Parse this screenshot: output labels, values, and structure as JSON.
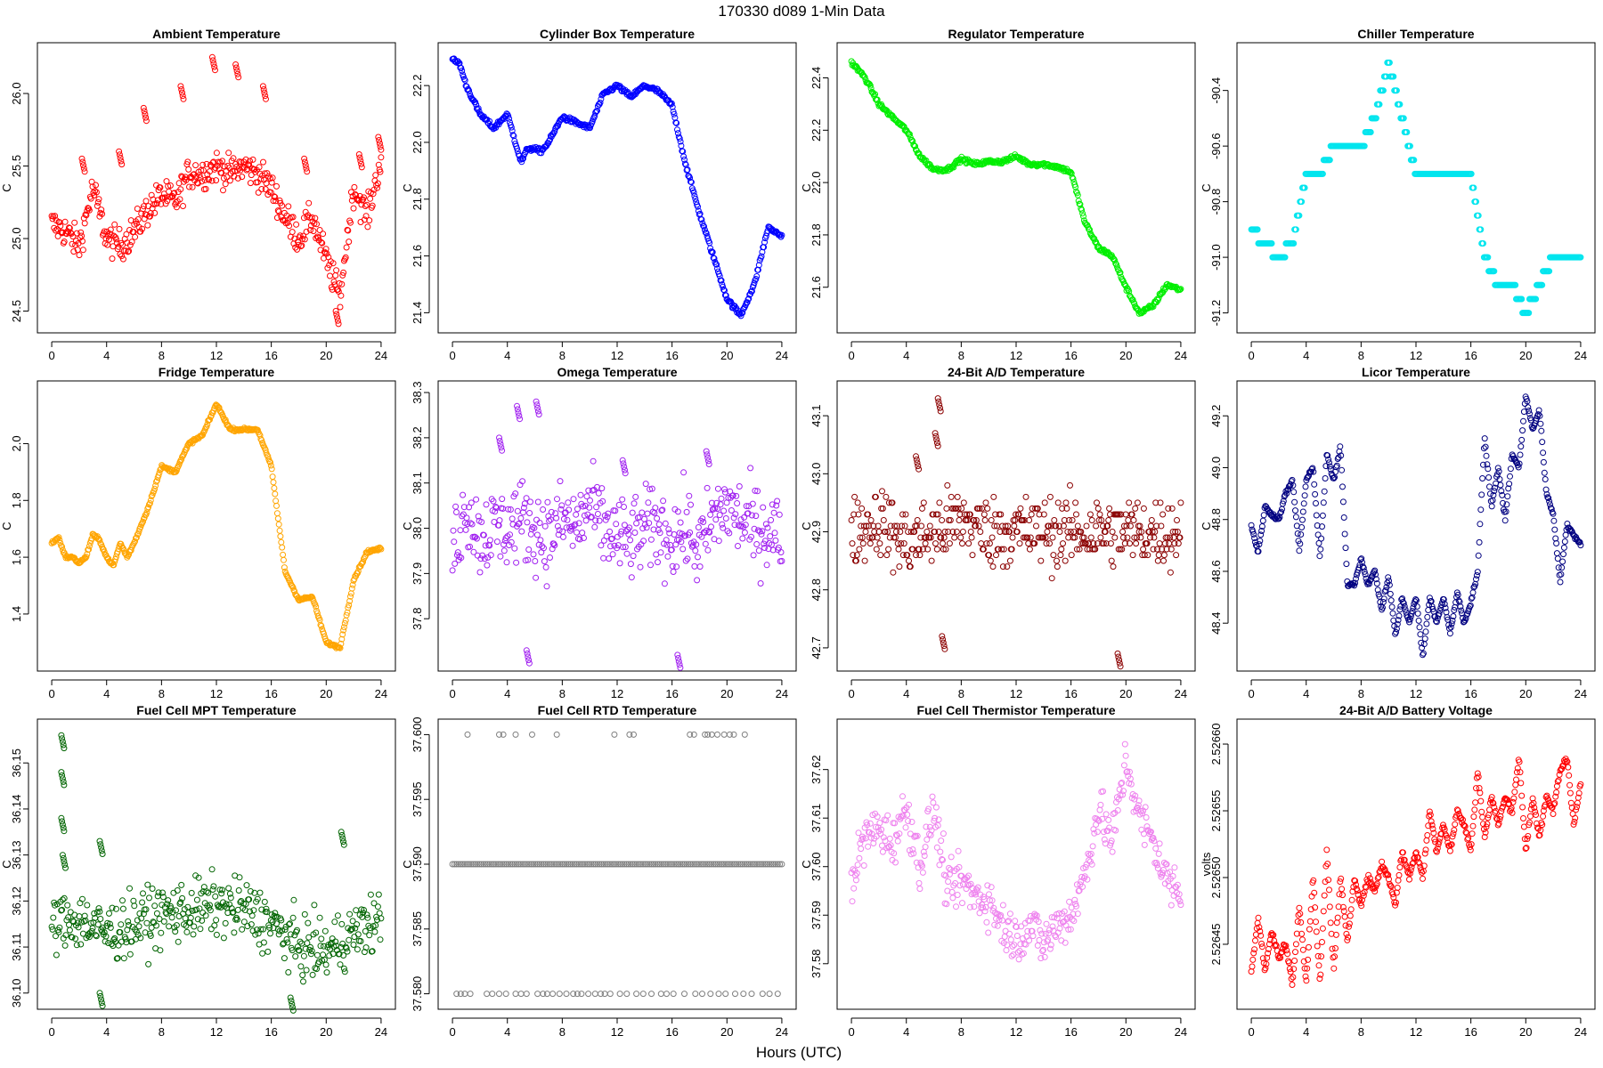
{
  "figure": {
    "title": "170330    d089    1-Min Data",
    "xlabel": "Hours (UTC)"
  },
  "chart_data": [
    {
      "type": "scatter",
      "title": "Ambient Temperature",
      "ylabel": "C",
      "color": "#ff0000",
      "xlim": [
        0,
        24
      ],
      "ylim": [
        24.43,
        26.27
      ],
      "xticks": [
        0,
        4,
        8,
        12,
        16,
        20,
        24
      ],
      "yticks": [
        "24.5",
        "25.0",
        "25.5",
        "26.0"
      ],
      "x": [
        0,
        1,
        2,
        3,
        4,
        5,
        6,
        7,
        8,
        9,
        10,
        11,
        12,
        13,
        14,
        15,
        16,
        17,
        18,
        19,
        20,
        21,
        22,
        23,
        24
      ],
      "y": [
        25.1,
        25.05,
        24.95,
        25.35,
        25.0,
        24.95,
        25.05,
        25.2,
        25.3,
        25.25,
        25.45,
        25.45,
        25.5,
        25.45,
        25.5,
        25.45,
        25.35,
        25.15,
        25.0,
        25.15,
        24.85,
        24.6,
        25.35,
        25.15,
        25.55
      ],
      "spread": 0.11,
      "spikes": [
        [
          2.3,
          25.55
        ],
        [
          5.0,
          25.6
        ],
        [
          6.8,
          25.9
        ],
        [
          9.5,
          26.05
        ],
        [
          11.8,
          26.25
        ],
        [
          13.5,
          26.2
        ],
        [
          15.5,
          26.05
        ],
        [
          18.5,
          25.55
        ],
        [
          20.8,
          24.5
        ],
        [
          22.5,
          25.58
        ],
        [
          23.9,
          25.7
        ]
      ]
    },
    {
      "type": "scatter",
      "title": "Cylinder Box Temperature",
      "ylabel": "C",
      "color": "#0000ff",
      "xlim": [
        0,
        24
      ],
      "ylim": [
        21.37,
        22.31
      ],
      "xticks": [
        0,
        4,
        8,
        12,
        16,
        20,
        24
      ],
      "yticks": [
        "21.4",
        "21.6",
        "21.8",
        "22.0",
        "22.2"
      ],
      "x": [
        0,
        0.5,
        1,
        2,
        3,
        4,
        5,
        5.5,
        6.5,
        7,
        8,
        9,
        10,
        11,
        12,
        13,
        14,
        15,
        16,
        17,
        18,
        19,
        20,
        21,
        22,
        23,
        24
      ],
      "y": [
        22.29,
        22.28,
        22.2,
        22.1,
        22.05,
        22.1,
        21.93,
        21.98,
        21.97,
        22.0,
        22.09,
        22.07,
        22.05,
        22.17,
        22.2,
        22.16,
        22.2,
        22.18,
        22.13,
        21.92,
        21.75,
        21.6,
        21.45,
        21.39,
        21.5,
        21.7,
        21.67
      ],
      "spread": 0.008
    },
    {
      "type": "scatter",
      "title": "Regulator Temperature",
      "ylabel": "C",
      "color": "#00ee00",
      "xlim": [
        0,
        24
      ],
      "ylim": [
        21.47,
        22.49
      ],
      "xticks": [
        0,
        4,
        8,
        12,
        16,
        20,
        24
      ],
      "yticks": [
        "21.6",
        "21.8",
        "22.0",
        "22.2",
        "22.4"
      ],
      "x": [
        0,
        1,
        2,
        3,
        4,
        5,
        6,
        7,
        8,
        9,
        10,
        11,
        12,
        13,
        14,
        15,
        16,
        17,
        18,
        19,
        20,
        21,
        22,
        23,
        24
      ],
      "y": [
        22.46,
        22.4,
        22.3,
        22.25,
        22.2,
        22.1,
        22.05,
        22.05,
        22.09,
        22.07,
        22.08,
        22.08,
        22.1,
        22.07,
        22.07,
        22.06,
        22.04,
        21.85,
        21.75,
        21.72,
        21.6,
        21.5,
        21.53,
        21.61,
        21.59
      ],
      "spread": 0.008
    },
    {
      "type": "scatter",
      "title": "Chiller Temperature",
      "ylabel": "C",
      "color": "#00e5ee",
      "xlim": [
        0,
        24
      ],
      "ylim": [
        -91.23,
        -90.27
      ],
      "xticks": [
        0,
        4,
        8,
        12,
        16,
        20,
        24
      ],
      "yticks": [
        "-91.2",
        "-91.0",
        "-90.8",
        "-90.6",
        "-90.4"
      ],
      "x": [
        0,
        1,
        2,
        3,
        4,
        5,
        6,
        7,
        8,
        9,
        10,
        11,
        12,
        13,
        14,
        15,
        16,
        17,
        18,
        19,
        20,
        21,
        22,
        23,
        24
      ],
      "y": [
        -90.9,
        -90.95,
        -91.0,
        -90.95,
        -90.7,
        -90.7,
        -90.6,
        -90.6,
        -90.6,
        -90.5,
        -90.3,
        -90.5,
        -90.7,
        -90.7,
        -90.7,
        -90.7,
        -90.7,
        -91.0,
        -91.1,
        -91.1,
        -91.2,
        -91.1,
        -91.0,
        -91.0,
        -91.0
      ],
      "spread": 0.0,
      "quantize": 0.05
    },
    {
      "type": "scatter",
      "title": "Fridge Temperature",
      "ylabel": "C",
      "color": "#ffa500",
      "xlim": [
        0,
        24
      ],
      "ylim": [
        1.24,
        2.18
      ],
      "xticks": [
        0,
        4,
        8,
        12,
        16,
        20,
        24
      ],
      "yticks": [
        "1.4",
        "1.6",
        "1.8",
        "2.0"
      ],
      "x": [
        0,
        0.5,
        1,
        1.5,
        2,
        2.5,
        3,
        3.5,
        4,
        4.5,
        5,
        5.5,
        6,
        7,
        8,
        9,
        10,
        11,
        12,
        13,
        14,
        15,
        16,
        17,
        18,
        19,
        20,
        21,
        22,
        23,
        24
      ],
      "y": [
        1.65,
        1.67,
        1.6,
        1.6,
        1.58,
        1.6,
        1.68,
        1.66,
        1.6,
        1.57,
        1.65,
        1.6,
        1.65,
        1.77,
        1.92,
        1.9,
        2.0,
        2.03,
        2.14,
        2.05,
        2.05,
        2.05,
        1.92,
        1.55,
        1.45,
        1.46,
        1.3,
        1.28,
        1.52,
        1.62,
        1.63
      ],
      "spread": 0.005
    },
    {
      "type": "scatter",
      "title": "Omega Temperature",
      "ylabel": "C",
      "color": "#a020f0",
      "xlim": [
        0,
        24
      ],
      "ylim": [
        37.71,
        38.3
      ],
      "xticks": [
        0,
        4,
        8,
        12,
        16,
        20,
        24
      ],
      "yticks": [
        "37.8",
        "37.9",
        "38.0",
        "38.1",
        "38.2",
        "38.3"
      ],
      "x": [
        0,
        1,
        2,
        3,
        4,
        5,
        6,
        7,
        8,
        9,
        10,
        11,
        12,
        13,
        14,
        15,
        16,
        17,
        18,
        19,
        20,
        21,
        22,
        23,
        24
      ],
      "y": [
        37.95,
        38.05,
        37.98,
        38.0,
        38.0,
        38.02,
        38.0,
        37.98,
        38.02,
        38.0,
        38.05,
        38.0,
        37.98,
        37.97,
        38.0,
        38.0,
        37.98,
        38.0,
        37.95,
        38.02,
        38.05,
        38.02,
        38.0,
        38.0,
        37.98
      ],
      "spread": 0.09,
      "spikes": [
        [
          3.5,
          38.2
        ],
        [
          4.8,
          38.27
        ],
        [
          6.2,
          38.28
        ],
        [
          5.5,
          37.73
        ],
        [
          16.5,
          37.72
        ],
        [
          12.5,
          38.15
        ],
        [
          18.6,
          38.17
        ]
      ]
    },
    {
      "type": "scatter",
      "title": "24-Bit A/D Temperature",
      "ylabel": "C",
      "color": "#8b0000",
      "xlim": [
        0,
        24
      ],
      "ylim": [
        42.68,
        43.14
      ],
      "xticks": [
        0,
        4,
        8,
        12,
        16,
        20,
        24
      ],
      "yticks": [
        "42.7",
        "42.8",
        "42.9",
        "43.0",
        "43.1"
      ],
      "x": [
        0,
        2,
        4,
        6,
        8,
        10,
        12,
        14,
        16,
        18,
        20,
        22,
        24
      ],
      "y": [
        42.9,
        42.92,
        42.88,
        42.9,
        42.92,
        42.9,
        42.9,
        42.9,
        42.9,
        42.9,
        42.9,
        42.9,
        42.9
      ],
      "spread": 0.06,
      "quantize": 0.01,
      "spikes": [
        [
          6.4,
          43.13
        ],
        [
          6.2,
          43.07
        ],
        [
          19.5,
          42.69
        ],
        [
          4.8,
          43.03
        ],
        [
          6.7,
          42.72
        ]
      ]
    },
    {
      "type": "scatter",
      "title": "Licor Temperature",
      "ylabel": "C",
      "color": "#000080",
      "xlim": [
        0,
        24
      ],
      "ylim": [
        48.26,
        49.29
      ],
      "xticks": [
        0,
        4,
        8,
        12,
        16,
        20,
        24
      ],
      "yticks": [
        "48.4",
        "48.6",
        "48.8",
        "49.0",
        "49.2"
      ],
      "x": [
        0,
        0.5,
        1,
        1.5,
        2,
        2.5,
        3,
        3.5,
        4,
        4.5,
        5,
        5.5,
        6,
        6.5,
        7,
        7.5,
        8,
        8.5,
        9,
        9.5,
        10,
        10.5,
        11,
        11.5,
        12,
        12.5,
        13,
        13.5,
        14,
        14.5,
        15,
        15.5,
        16,
        16.5,
        17,
        17.5,
        18,
        18.5,
        19,
        19.5,
        20,
        20.5,
        21,
        21.5,
        22,
        22.5,
        23,
        23.5,
        24
      ],
      "y": [
        48.78,
        48.67,
        48.85,
        48.82,
        48.8,
        48.9,
        48.95,
        48.68,
        48.95,
        49.0,
        48.65,
        49.05,
        48.95,
        49.08,
        48.55,
        48.55,
        48.65,
        48.55,
        48.6,
        48.45,
        48.58,
        48.35,
        48.5,
        48.4,
        48.5,
        48.27,
        48.5,
        48.4,
        48.5,
        48.36,
        48.52,
        48.4,
        48.48,
        48.6,
        49.12,
        48.85,
        49.0,
        48.8,
        49.05,
        49.0,
        49.28,
        49.15,
        49.22,
        48.9,
        48.82,
        48.56,
        48.78,
        48.74,
        48.7
      ],
      "spread": 0.008
    },
    {
      "type": "scatter",
      "title": "Fuel Cell MPT Temperature",
      "ylabel": "C",
      "color": "#006400",
      "xlim": [
        0,
        24
      ],
      "ylim": [
        36.099,
        36.157
      ],
      "xticks": [
        0,
        4,
        8,
        12,
        16,
        20,
        24
      ],
      "yticks": [
        "36.10",
        "36.11",
        "36.12",
        "36.13",
        "36.14",
        "36.15"
      ],
      "x": [
        0,
        2,
        4,
        6,
        8,
        10,
        12,
        14,
        16,
        18,
        20,
        22,
        24
      ],
      "y": [
        36.115,
        36.116,
        36.113,
        36.115,
        36.117,
        36.118,
        36.119,
        36.118,
        36.115,
        36.11,
        36.109,
        36.113,
        36.116
      ],
      "spread": 0.0065,
      "spikes": [
        [
          0.8,
          36.156
        ],
        [
          0.8,
          36.148
        ],
        [
          0.8,
          36.138
        ],
        [
          0.9,
          36.13
        ],
        [
          3.6,
          36.133
        ],
        [
          21.2,
          36.135
        ],
        [
          3.6,
          36.1
        ],
        [
          17.5,
          36.099
        ]
      ]
    },
    {
      "type": "scatter",
      "title": "Fuel Cell RTD Temperature",
      "ylabel": "C",
      "color": "#7f7f7f",
      "xlim": [
        0,
        24
      ],
      "ylim": [
        37.5797,
        37.6003
      ],
      "xticks": [
        0,
        4,
        8,
        12,
        16,
        20,
        24
      ],
      "yticks": [
        "37.580",
        "37.585",
        "37.590",
        "37.595",
        "37.600"
      ],
      "x": [
        0,
        24
      ],
      "y": [
        37.59,
        37.59
      ],
      "spread": 0.0,
      "dense": true,
      "outliers_high": {
        "value": 37.6,
        "x": [
          1.1,
          3.4,
          3.7,
          4.6,
          5.8,
          7.6,
          11.8,
          12.9,
          13.2,
          17.3,
          17.6,
          18.4,
          18.6,
          18.9,
          19.3,
          19.8,
          20.2,
          20.5,
          21.3
        ]
      },
      "outliers_low": {
        "value": 37.58,
        "x": [
          0.3,
          0.6,
          0.9,
          1.3,
          2.5,
          2.9,
          3.4,
          3.9,
          4.6,
          5.0,
          5.4,
          6.2,
          6.6,
          6.9,
          7.3,
          7.8,
          8.3,
          8.8,
          9.1,
          9.4,
          9.9,
          10.4,
          10.8,
          11.1,
          11.5,
          12.2,
          12.7,
          13.4,
          13.9,
          14.5,
          15.2,
          15.6,
          16.1,
          16.9,
          17.7,
          18.2,
          18.8,
          19.4,
          19.9,
          20.6,
          21.2,
          21.8,
          22.6,
          23.1,
          23.7
        ]
      }
    },
    {
      "type": "scatter",
      "title": "Fuel Cell Thermistor Temperature",
      "ylabel": "C",
      "color": "#ee82ee",
      "xlim": [
        0,
        24
      ],
      "ylim": [
        37.573,
        37.628
      ],
      "xticks": [
        0,
        4,
        8,
        12,
        16,
        20,
        24
      ],
      "yticks": [
        "37.58",
        "37.59",
        "37.60",
        "37.61",
        "37.62"
      ],
      "x": [
        0,
        1,
        2,
        3,
        4,
        5,
        6,
        7,
        8,
        9,
        10,
        11,
        12,
        13,
        14,
        15,
        16,
        17,
        18,
        19,
        20,
        21,
        22,
        23,
        24
      ],
      "y": [
        37.597,
        37.606,
        37.608,
        37.605,
        37.612,
        37.6,
        37.612,
        37.595,
        37.597,
        37.594,
        37.593,
        37.588,
        37.585,
        37.588,
        37.584,
        37.588,
        37.59,
        37.598,
        37.612,
        37.605,
        37.622,
        37.61,
        37.605,
        37.597,
        37.595
      ],
      "spread": 0.005
    },
    {
      "type": "scatter",
      "title": "24-Bit A/D Battery Voltage",
      "ylabel": "volts",
      "color": "#ff0000",
      "xlim": [
        0,
        24
      ],
      "ylim": [
        2.52641,
        2.52661
      ],
      "xticks": [
        0,
        4,
        8,
        12,
        16,
        20,
        24
      ],
      "yticks": [
        "2.52645",
        "2.52650",
        "2.52655",
        "2.52660"
      ],
      "x": [
        0,
        0.5,
        1,
        1.5,
        2,
        2.5,
        3,
        3.5,
        4,
        4.5,
        5,
        5.5,
        6,
        6.5,
        7,
        7.5,
        8,
        8.5,
        9,
        9.5,
        10,
        10.5,
        11,
        11.5,
        12,
        12.5,
        13,
        13.5,
        14,
        14.5,
        15,
        15.5,
        16,
        16.5,
        17,
        17.5,
        18,
        18.5,
        19,
        19.5,
        20,
        20.5,
        21,
        21.5,
        22,
        22.5,
        23,
        23.5,
        24
      ],
      "y": [
        2.52643,
        2.52647,
        2.52643,
        2.52646,
        2.52644,
        2.52645,
        2.52642,
        2.52648,
        2.52642,
        2.5265,
        2.52642,
        2.52652,
        2.52643,
        2.5265,
        2.52645,
        2.5265,
        2.52648,
        2.5265,
        2.52649,
        2.52651,
        2.5265,
        2.52648,
        2.52652,
        2.5265,
        2.52652,
        2.5265,
        2.52655,
        2.52652,
        2.52654,
        2.52652,
        2.52655,
        2.52654,
        2.52652,
        2.52658,
        2.52653,
        2.52656,
        2.52654,
        2.52656,
        2.52655,
        2.52659,
        2.52652,
        2.52656,
        2.52653,
        2.52656,
        2.52655,
        2.52658,
        2.52659,
        2.52654,
        2.52657
      ],
      "spread": 2.5e-06
    }
  ]
}
